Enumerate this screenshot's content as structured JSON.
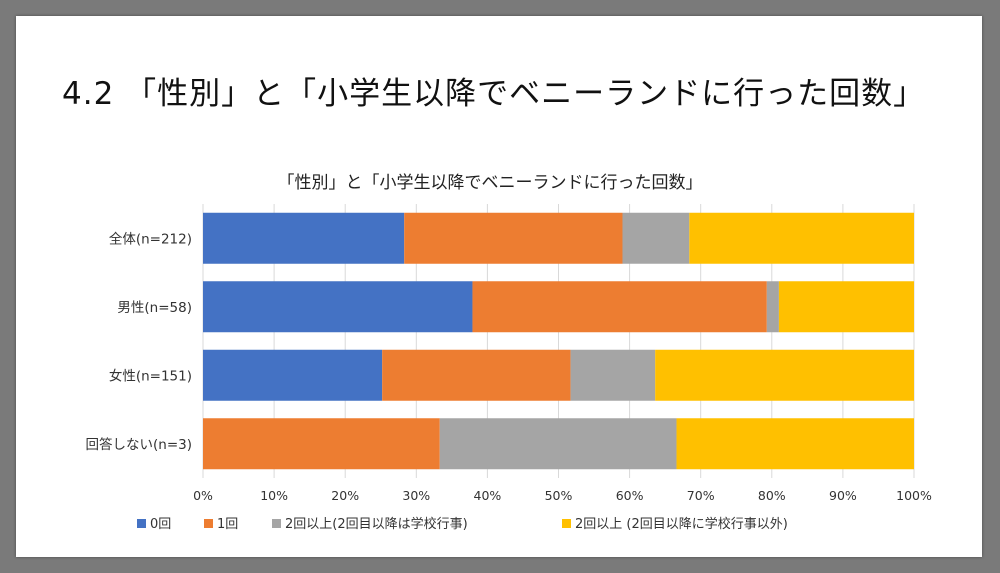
{
  "slide": {
    "title": "4.2 「性別」と「小学生以降でベニーランドに行った回数」"
  },
  "chart_data": {
    "type": "bar",
    "orientation": "horizontal",
    "stacked": "percent",
    "title": "「性別」と「小学生以降でベニーランドに行った回数」",
    "categories": [
      "全体(n=212)",
      "男性(n=58)",
      "女性(n=151)",
      "回答しない(n=3)"
    ],
    "series": [
      {
        "name": "0回",
        "color": "#4472C4",
        "values": [
          28.3,
          37.9,
          25.2,
          0
        ]
      },
      {
        "name": "1回",
        "color": "#ED7D31",
        "values": [
          30.7,
          41.4,
          26.5,
          33.3
        ]
      },
      {
        "name": "2回以上(2回目以降は学校行事)",
        "color": "#A5A5A5",
        "values": [
          9.4,
          1.7,
          11.9,
          33.3
        ]
      },
      {
        "name": "2回以上 (2回目以降に学校行事以外)",
        "color": "#FFC000",
        "values": [
          31.6,
          19.0,
          36.4,
          33.4
        ]
      }
    ],
    "xlim": [
      0,
      100
    ],
    "xticks": [
      "0%",
      "10%",
      "20%",
      "30%",
      "40%",
      "50%",
      "60%",
      "70%",
      "80%",
      "90%",
      "100%"
    ],
    "grid": true,
    "legend_position": "bottom"
  }
}
